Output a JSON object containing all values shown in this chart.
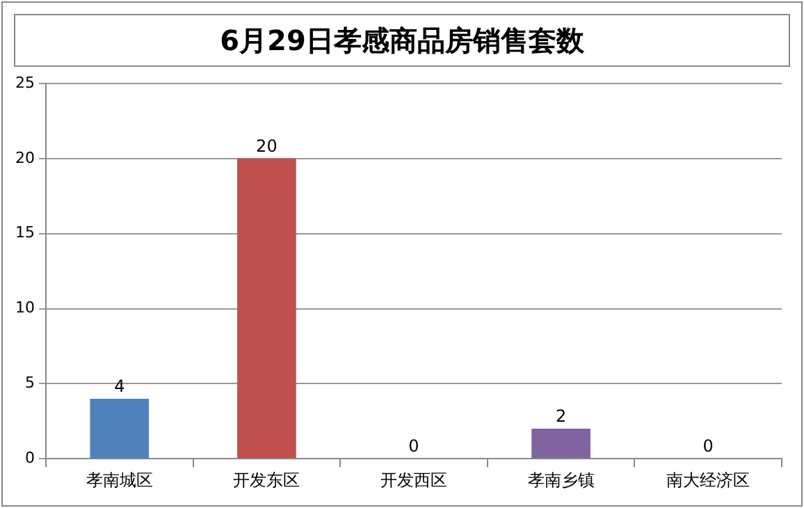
{
  "chart_data": {
    "type": "bar",
    "title": "6月29日孝感商品房销售套数",
    "categories": [
      "孝南城区",
      "开发东区",
      "开发西区",
      "孝南乡镇",
      "南大经济区"
    ],
    "values": [
      4,
      20,
      0,
      2,
      0
    ],
    "colors": [
      "#4f81bd",
      "#c0504d",
      "#9bbb59",
      "#8064a2",
      "#4bacc6"
    ],
    "ylim": [
      0,
      25
    ],
    "yticks": [
      0,
      5,
      10,
      15,
      20,
      25
    ],
    "grid": "y",
    "data_labels": true
  }
}
